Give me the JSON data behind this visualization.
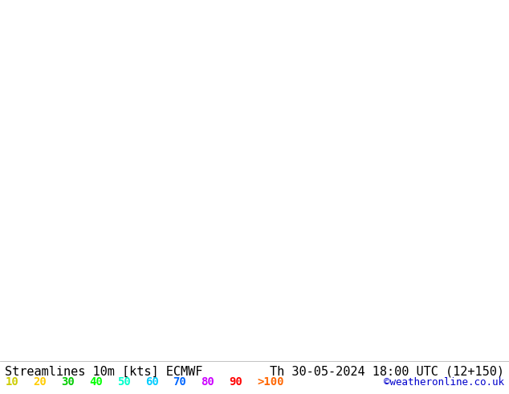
{
  "title_left": "Streamlines 10m [kts] ECMWF",
  "title_right": "Th 30-05-2024 18:00 UTC (12+150)",
  "credit": "©weatheronline.co.uk",
  "legend_values": [
    "10",
    "20",
    "30",
    "40",
    "50",
    "60",
    "70",
    "80",
    "90",
    ">100"
  ],
  "legend_colors": [
    "#CCCC00",
    "#FFCC00",
    "#00CC00",
    "#00FF00",
    "#00FFCC",
    "#00CCFF",
    "#0066FF",
    "#CC00FF",
    "#FF0000",
    "#FF6600"
  ],
  "bg_color": "#e8e8e8",
  "land_color": "#ffffcc",
  "ocean_color": "#d0dce8",
  "font_size_title": 11,
  "font_size_legend": 10,
  "map_extent": [
    90,
    180,
    -55,
    10
  ],
  "colormap_colors": [
    "#333300",
    "#cccc00",
    "#ffcc00",
    "#00cc00",
    "#00ff00",
    "#00ffcc",
    "#00ccff",
    "#0066ff",
    "#cc00ff",
    "#ff0000",
    "#ff6600"
  ],
  "speed_levels": [
    0,
    10,
    20,
    30,
    40,
    50,
    60,
    70,
    80,
    90,
    100,
    120
  ]
}
